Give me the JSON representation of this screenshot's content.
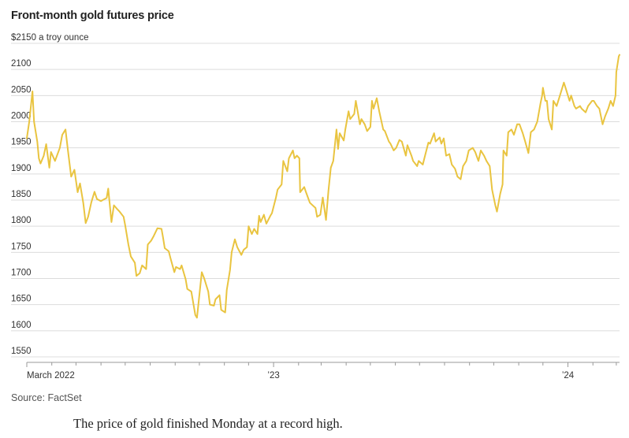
{
  "header": {
    "title": "Front-month gold futures price"
  },
  "footer": {
    "source": "Source: FactSet",
    "caption": "The price of gold finished Monday at a record high."
  },
  "chart_data": {
    "type": "line",
    "title": "Front-month gold futures price",
    "ylabel": "a troy ounce",
    "xlabel": "",
    "ylim": [
      1550,
      2150
    ],
    "y_ticks": [
      1550,
      1600,
      1650,
      1700,
      1750,
      1800,
      1850,
      1900,
      1950,
      2000,
      2050,
      2100,
      2150
    ],
    "y_tick_labels": [
      "1550",
      "1600",
      "1650",
      "1700",
      "1750",
      "1800",
      "1850",
      "1900",
      "1950",
      "2000",
      "2050",
      "2100",
      "$2150 a troy ounce"
    ],
    "x_range": [
      "2022-03-01",
      "2024-03-05"
    ],
    "x_tick_labels": [
      {
        "date": "2022-03-01",
        "label": "March 2022"
      },
      {
        "date": "2023-01-01",
        "label": "’23"
      },
      {
        "date": "2024-01-01",
        "label": "’24"
      }
    ],
    "x_minor_ticks": [
      "2022-04-01",
      "2022-05-01",
      "2022-06-01",
      "2022-07-01",
      "2022-08-01",
      "2022-09-01",
      "2022-10-01",
      "2022-11-01",
      "2022-12-01",
      "2023-02-01",
      "2023-03-01",
      "2023-04-01",
      "2023-05-01",
      "2023-06-01",
      "2023-07-01",
      "2023-08-01",
      "2023-09-01",
      "2023-10-01",
      "2023-11-01",
      "2023-12-01",
      "2024-02-01",
      "2024-03-01"
    ],
    "series": [
      {
        "name": "Gold front-month futures",
        "color": "#e9c440",
        "points": [
          [
            "2022-03-01",
            1968
          ],
          [
            "2022-03-04",
            2000
          ],
          [
            "2022-03-08",
            2058
          ],
          [
            "2022-03-10",
            2000
          ],
          [
            "2022-03-14",
            1962
          ],
          [
            "2022-03-16",
            1930
          ],
          [
            "2022-03-18",
            1920
          ],
          [
            "2022-03-22",
            1935
          ],
          [
            "2022-03-25",
            1957
          ],
          [
            "2022-03-29",
            1912
          ],
          [
            "2022-03-31",
            1942
          ],
          [
            "2022-04-05",
            1925
          ],
          [
            "2022-04-11",
            1950
          ],
          [
            "2022-04-14",
            1975
          ],
          [
            "2022-04-18",
            1985
          ],
          [
            "2022-04-21",
            1945
          ],
          [
            "2022-04-25",
            1895
          ],
          [
            "2022-04-29",
            1908
          ],
          [
            "2022-05-03",
            1865
          ],
          [
            "2022-05-06",
            1882
          ],
          [
            "2022-05-10",
            1845
          ],
          [
            "2022-05-13",
            1806
          ],
          [
            "2022-05-16",
            1818
          ],
          [
            "2022-05-20",
            1846
          ],
          [
            "2022-05-24",
            1866
          ],
          [
            "2022-05-27",
            1852
          ],
          [
            "2022-06-01",
            1848
          ],
          [
            "2022-06-03",
            1850
          ],
          [
            "2022-06-08",
            1854
          ],
          [
            "2022-06-10",
            1872
          ],
          [
            "2022-06-14",
            1808
          ],
          [
            "2022-06-17",
            1840
          ],
          [
            "2022-06-21",
            1833
          ],
          [
            "2022-06-24",
            1828
          ],
          [
            "2022-06-29",
            1818
          ],
          [
            "2022-07-01",
            1802
          ],
          [
            "2022-07-05",
            1765
          ],
          [
            "2022-07-08",
            1742
          ],
          [
            "2022-07-13",
            1730
          ],
          [
            "2022-07-15",
            1705
          ],
          [
            "2022-07-19",
            1710
          ],
          [
            "2022-07-22",
            1725
          ],
          [
            "2022-07-27",
            1718
          ],
          [
            "2022-07-29",
            1765
          ],
          [
            "2022-08-02",
            1772
          ],
          [
            "2022-08-05",
            1780
          ],
          [
            "2022-08-10",
            1796
          ],
          [
            "2022-08-15",
            1795
          ],
          [
            "2022-08-17",
            1778
          ],
          [
            "2022-08-19",
            1758
          ],
          [
            "2022-08-24",
            1752
          ],
          [
            "2022-08-26",
            1740
          ],
          [
            "2022-08-31",
            1712
          ],
          [
            "2022-09-02",
            1722
          ],
          [
            "2022-09-07",
            1718
          ],
          [
            "2022-09-09",
            1725
          ],
          [
            "2022-09-14",
            1698
          ],
          [
            "2022-09-16",
            1680
          ],
          [
            "2022-09-21",
            1675
          ],
          [
            "2022-09-26",
            1630
          ],
          [
            "2022-09-28",
            1625
          ],
          [
            "2022-10-04",
            1712
          ],
          [
            "2022-10-07",
            1700
          ],
          [
            "2022-10-12",
            1675
          ],
          [
            "2022-10-14",
            1650
          ],
          [
            "2022-10-19",
            1648
          ],
          [
            "2022-10-21",
            1660
          ],
          [
            "2022-10-26",
            1668
          ],
          [
            "2022-10-28",
            1640
          ],
          [
            "2022-11-02",
            1635
          ],
          [
            "2022-11-04",
            1678
          ],
          [
            "2022-11-08",
            1716
          ],
          [
            "2022-11-10",
            1750
          ],
          [
            "2022-11-14",
            1775
          ],
          [
            "2022-11-17",
            1760
          ],
          [
            "2022-11-22",
            1745
          ],
          [
            "2022-11-25",
            1755
          ],
          [
            "2022-11-29",
            1760
          ],
          [
            "2022-12-01",
            1800
          ],
          [
            "2022-12-05",
            1785
          ],
          [
            "2022-12-08",
            1795
          ],
          [
            "2022-12-12",
            1785
          ],
          [
            "2022-12-14",
            1820
          ],
          [
            "2022-12-16",
            1808
          ],
          [
            "2022-12-20",
            1822
          ],
          [
            "2022-12-23",
            1805
          ],
          [
            "2022-12-28",
            1820
          ],
          [
            "2022-12-30",
            1825
          ],
          [
            "2023-01-04",
            1855
          ],
          [
            "2023-01-06",
            1870
          ],
          [
            "2023-01-11",
            1880
          ],
          [
            "2023-01-13",
            1925
          ],
          [
            "2023-01-18",
            1905
          ],
          [
            "2023-01-20",
            1930
          ],
          [
            "2023-01-25",
            1945
          ],
          [
            "2023-01-27",
            1930
          ],
          [
            "2023-01-30",
            1935
          ],
          [
            "2023-02-02",
            1930
          ],
          [
            "2023-02-03",
            1865
          ],
          [
            "2023-02-08",
            1875
          ],
          [
            "2023-02-10",
            1866
          ],
          [
            "2023-02-15",
            1845
          ],
          [
            "2023-02-17",
            1842
          ],
          [
            "2023-02-22",
            1835
          ],
          [
            "2023-02-24",
            1818
          ],
          [
            "2023-02-28",
            1822
          ],
          [
            "2023-03-03",
            1855
          ],
          [
            "2023-03-07",
            1812
          ],
          [
            "2023-03-10",
            1868
          ],
          [
            "2023-03-13",
            1912
          ],
          [
            "2023-03-16",
            1925
          ],
          [
            "2023-03-20",
            1985
          ],
          [
            "2023-03-22",
            1948
          ],
          [
            "2023-03-24",
            1978
          ],
          [
            "2023-03-29",
            1964
          ],
          [
            "2023-03-31",
            1985
          ],
          [
            "2023-04-04",
            2020
          ],
          [
            "2023-04-06",
            2005
          ],
          [
            "2023-04-11",
            2015
          ],
          [
            "2023-04-13",
            2040
          ],
          [
            "2023-04-18",
            1995
          ],
          [
            "2023-04-20",
            2005
          ],
          [
            "2023-04-24",
            1995
          ],
          [
            "2023-04-27",
            1982
          ],
          [
            "2023-05-01",
            1990
          ],
          [
            "2023-05-03",
            2040
          ],
          [
            "2023-05-05",
            2025
          ],
          [
            "2023-05-09",
            2045
          ],
          [
            "2023-05-12",
            2020
          ],
          [
            "2023-05-17",
            1985
          ],
          [
            "2023-05-19",
            1982
          ],
          [
            "2023-05-24",
            1962
          ],
          [
            "2023-05-26",
            1958
          ],
          [
            "2023-05-30",
            1945
          ],
          [
            "2023-06-02",
            1950
          ],
          [
            "2023-06-06",
            1965
          ],
          [
            "2023-06-09",
            1962
          ],
          [
            "2023-06-14",
            1935
          ],
          [
            "2023-06-16",
            1955
          ],
          [
            "2023-06-21",
            1935
          ],
          [
            "2023-06-23",
            1925
          ],
          [
            "2023-06-28",
            1915
          ],
          [
            "2023-06-30",
            1925
          ],
          [
            "2023-07-05",
            1918
          ],
          [
            "2023-07-07",
            1930
          ],
          [
            "2023-07-12",
            1960
          ],
          [
            "2023-07-14",
            1958
          ],
          [
            "2023-07-19",
            1978
          ],
          [
            "2023-07-21",
            1962
          ],
          [
            "2023-07-26",
            1970
          ],
          [
            "2023-07-28",
            1958
          ],
          [
            "2023-07-31",
            1968
          ],
          [
            "2023-08-03",
            1935
          ],
          [
            "2023-08-07",
            1938
          ],
          [
            "2023-08-10",
            1918
          ],
          [
            "2023-08-14",
            1910
          ],
          [
            "2023-08-17",
            1895
          ],
          [
            "2023-08-21",
            1890
          ],
          [
            "2023-08-24",
            1915
          ],
          [
            "2023-08-28",
            1925
          ],
          [
            "2023-08-31",
            1945
          ],
          [
            "2023-09-05",
            1950
          ],
          [
            "2023-09-08",
            1942
          ],
          [
            "2023-09-12",
            1925
          ],
          [
            "2023-09-15",
            1945
          ],
          [
            "2023-09-19",
            1935
          ],
          [
            "2023-09-22",
            1925
          ],
          [
            "2023-09-26",
            1915
          ],
          [
            "2023-09-29",
            1870
          ],
          [
            "2023-10-03",
            1840
          ],
          [
            "2023-10-05",
            1828
          ],
          [
            "2023-10-09",
            1862
          ],
          [
            "2023-10-12",
            1880
          ],
          [
            "2023-10-13",
            1945
          ],
          [
            "2023-10-17",
            1935
          ],
          [
            "2023-10-19",
            1980
          ],
          [
            "2023-10-23",
            1985
          ],
          [
            "2023-10-26",
            1975
          ],
          [
            "2023-10-30",
            1995
          ],
          [
            "2023-11-02",
            1995
          ],
          [
            "2023-11-06",
            1978
          ],
          [
            "2023-11-09",
            1962
          ],
          [
            "2023-11-13",
            1940
          ],
          [
            "2023-11-16",
            1980
          ],
          [
            "2023-11-20",
            1985
          ],
          [
            "2023-11-24",
            2000
          ],
          [
            "2023-11-28",
            2035
          ],
          [
            "2023-11-30",
            2050
          ],
          [
            "2023-12-01",
            2065
          ],
          [
            "2023-12-04",
            2040
          ],
          [
            "2023-12-06",
            2040
          ],
          [
            "2023-12-08",
            2005
          ],
          [
            "2023-12-12",
            1985
          ],
          [
            "2023-12-14",
            2040
          ],
          [
            "2023-12-18",
            2030
          ],
          [
            "2023-12-21",
            2045
          ],
          [
            "2023-12-27",
            2075
          ],
          [
            "2023-12-29",
            2065
          ],
          [
            "2024-01-03",
            2040
          ],
          [
            "2024-01-05",
            2050
          ],
          [
            "2024-01-09",
            2030
          ],
          [
            "2024-01-11",
            2025
          ],
          [
            "2024-01-16",
            2030
          ],
          [
            "2024-01-18",
            2025
          ],
          [
            "2024-01-23",
            2018
          ],
          [
            "2024-01-26",
            2030
          ],
          [
            "2024-01-31",
            2040
          ],
          [
            "2024-02-02",
            2040
          ],
          [
            "2024-02-06",
            2030
          ],
          [
            "2024-02-09",
            2025
          ],
          [
            "2024-02-13",
            1995
          ],
          [
            "2024-02-16",
            2010
          ],
          [
            "2024-02-20",
            2025
          ],
          [
            "2024-02-23",
            2040
          ],
          [
            "2024-02-26",
            2030
          ],
          [
            "2024-02-29",
            2050
          ],
          [
            "2024-03-01",
            2095
          ],
          [
            "2024-03-04",
            2125
          ],
          [
            "2024-03-05",
            2128
          ]
        ]
      }
    ]
  }
}
